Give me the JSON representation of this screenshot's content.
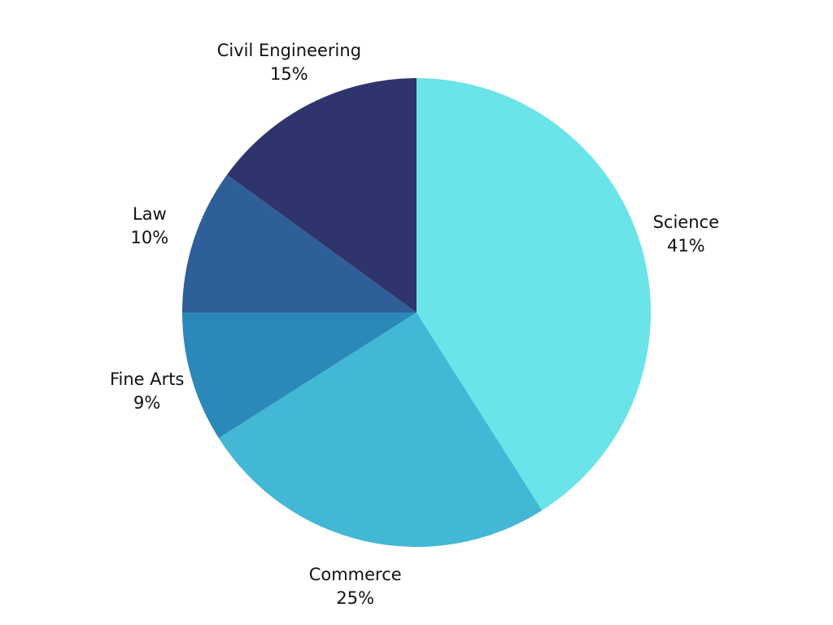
{
  "chart_data": {
    "type": "pie",
    "start": "12 o'clock",
    "direction": "clockwise",
    "slices": [
      {
        "label": "Science",
        "value": 41,
        "value_label": "41%",
        "color": "#6ae4e8"
      },
      {
        "label": "Commerce",
        "value": 25,
        "value_label": "25%",
        "color": "#43b7d6"
      },
      {
        "label": "Fine Arts",
        "value": 9,
        "value_label": "9%",
        "color": "#2b89b9"
      },
      {
        "label": "Law",
        "value": 10,
        "value_label": "10%",
        "color": "#2e5f98"
      },
      {
        "label": "Civil Engineering",
        "value": 15,
        "value_label": "15%",
        "color": "#30346c"
      }
    ]
  }
}
